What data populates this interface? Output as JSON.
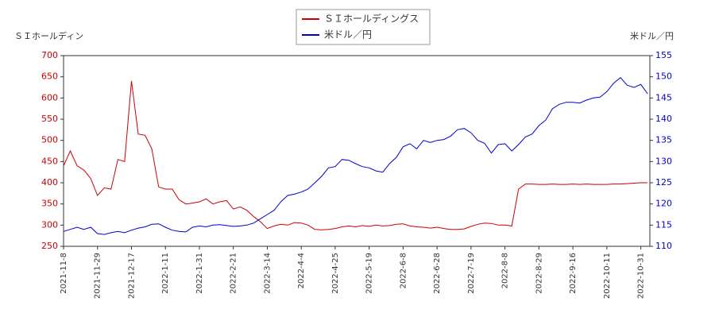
{
  "chart_data": {
    "type": "line",
    "y_label": "ＳＩホールディン",
    "y2_label": "米ドル／円",
    "x": [
      0,
      3,
      6,
      9,
      12,
      15,
      18,
      21,
      24,
      27,
      30,
      33,
      36,
      39,
      42,
      45,
      48,
      51,
      54,
      57,
      60,
      63,
      66,
      69,
      72,
      75,
      78,
      81,
      84,
      87,
      90,
      93,
      96,
      99,
      102,
      105,
      108,
      111,
      114,
      117,
      120,
      123,
      126,
      129,
      132,
      135,
      138,
      141,
      144,
      147,
      150,
      153,
      156,
      159,
      162,
      165,
      168,
      171,
      174,
      177,
      180,
      183,
      186,
      189,
      192,
      195,
      198,
      201,
      204,
      207,
      210,
      213,
      216,
      219,
      222,
      225,
      228,
      231,
      234,
      237,
      240,
      243,
      246,
      249,
      252,
      255,
      258
    ],
    "xlim": [
      0,
      259
    ],
    "xticks": [
      {
        "value": 0,
        "label": "2021-11-8"
      },
      {
        "value": 15,
        "label": "2021-11-29"
      },
      {
        "value": 30,
        "label": "2021-12-17"
      },
      {
        "value": 45,
        "label": "2022-1-11"
      },
      {
        "value": 60,
        "label": "2022-1-31"
      },
      {
        "value": 75,
        "label": "2022-2-21"
      },
      {
        "value": 90,
        "label": "2022-3-14"
      },
      {
        "value": 105,
        "label": "2022-4-4"
      },
      {
        "value": 120,
        "label": "2022-4-25"
      },
      {
        "value": 135,
        "label": "2022-5-19"
      },
      {
        "value": 150,
        "label": "2022-6-8"
      },
      {
        "value": 165,
        "label": "2022-6-28"
      },
      {
        "value": 180,
        "label": "2022-7-19"
      },
      {
        "value": 195,
        "label": "2022-8-8"
      },
      {
        "value": 210,
        "label": "2022-8-29"
      },
      {
        "value": 225,
        "label": "2022-9-16"
      },
      {
        "value": 240,
        "label": "2022-10-11"
      },
      {
        "value": 255,
        "label": "2022-10-31"
      }
    ],
    "ylim": [
      250,
      700
    ],
    "yticks": [
      250,
      300,
      350,
      400,
      450,
      500,
      550,
      600,
      650,
      700
    ],
    "y2lim": [
      110,
      155
    ],
    "y2ticks": [
      110,
      115,
      120,
      125,
      130,
      135,
      140,
      145,
      150,
      155
    ],
    "series": [
      {
        "name": "ＳＩホールディングス",
        "color": "#cc0000",
        "axis": "y",
        "values": [
          440,
          475,
          440,
          430,
          410,
          370,
          388,
          385,
          455,
          450,
          640,
          515,
          512,
          480,
          390,
          385,
          385,
          360,
          350,
          352,
          355,
          362,
          350,
          355,
          358,
          338,
          343,
          335,
          320,
          308,
          292,
          298,
          302,
          300,
          306,
          305,
          300,
          290,
          289,
          290,
          292,
          296,
          298,
          296,
          299,
          297,
          300,
          298,
          299,
          302,
          303,
          298,
          296,
          295,
          293,
          295,
          292,
          290,
          290,
          291,
          297,
          302,
          305,
          304,
          300,
          300,
          298,
          385,
          397,
          397,
          396,
          396,
          397,
          396,
          396,
          397,
          396,
          397,
          396,
          396,
          396,
          397,
          397,
          398,
          399,
          400,
          400
        ]
      },
      {
        "name": "米ドル／円",
        "color": "#0000cc",
        "axis": "y2",
        "values": [
          113.5,
          114,
          114.5,
          114,
          114.5,
          113,
          112.8,
          113.2,
          113.5,
          113.2,
          113.8,
          114.3,
          114.6,
          115.2,
          115.3,
          114.5,
          113.8,
          113.5,
          113.4,
          114.5,
          114.8,
          114.6,
          115,
          115.1,
          114.9,
          114.7,
          114.8,
          115,
          115.5,
          116.5,
          117.5,
          118.5,
          120.5,
          122,
          122.3,
          122.8,
          123.5,
          125,
          126.5,
          128.5,
          128.8,
          130.5,
          130.3,
          129.5,
          128.8,
          128.5,
          127.8,
          127.5,
          129.5,
          131,
          133.5,
          134.2,
          133,
          135,
          134.5,
          135,
          135.2,
          136,
          137.5,
          137.8,
          136.8,
          135,
          134.3,
          132,
          134,
          134.2,
          132.5,
          134,
          135.8,
          136.5,
          138.5,
          139.8,
          142.5,
          143.5,
          144,
          144,
          143.8,
          144.5,
          145,
          145.2,
          146.5,
          148.5,
          149.8,
          148,
          147.5,
          148.2,
          146
        ]
      }
    ],
    "legend": "top"
  }
}
